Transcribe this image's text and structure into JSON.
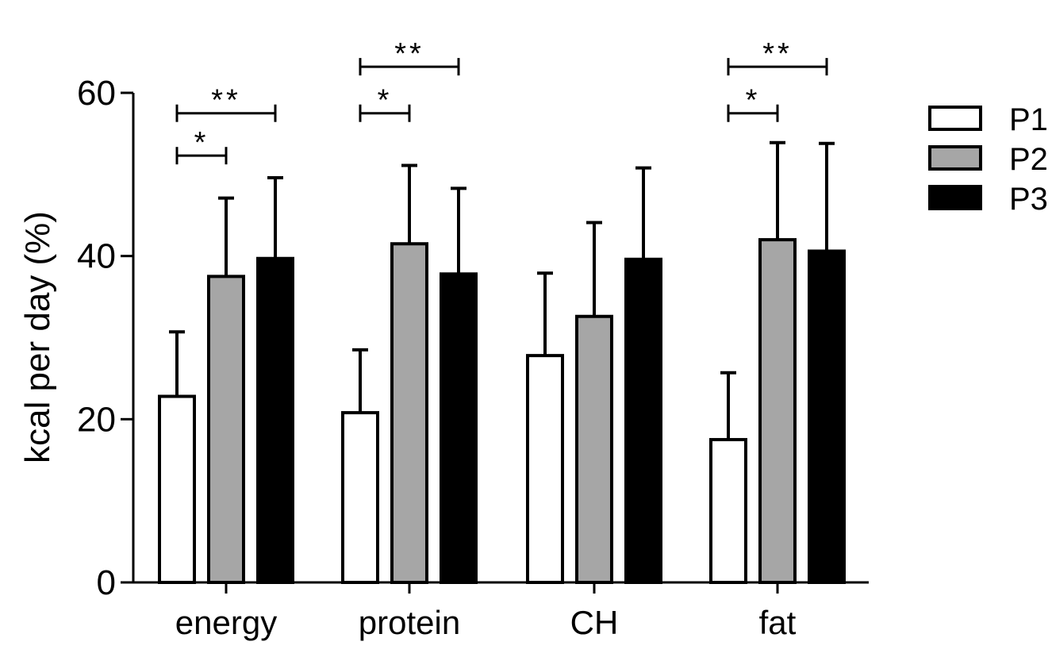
{
  "chart_data": {
    "type": "bar",
    "title": "",
    "xlabel": "",
    "ylabel": "kcal per day (%)",
    "ylim": [
      0,
      60
    ],
    "yticks": [
      0,
      20,
      40,
      60
    ],
    "grid": false,
    "legend_position": "right",
    "categories": [
      "energy",
      "protein",
      "CH",
      "fat"
    ],
    "series": [
      {
        "name": "P1",
        "color": "#ffffff",
        "values": [
          22.8,
          20.8,
          27.8,
          17.5
        ],
        "errors": [
          7.9,
          7.7,
          10.1,
          8.2
        ]
      },
      {
        "name": "P2",
        "color": "#a6a6a6",
        "values": [
          37.5,
          41.5,
          32.6,
          42.0
        ],
        "errors": [
          9.6,
          9.6,
          11.5,
          11.9
        ]
      },
      {
        "name": "P3",
        "color": "#000000",
        "values": [
          39.7,
          37.8,
          39.6,
          40.6
        ],
        "errors": [
          9.9,
          10.5,
          11.2,
          13.2
        ]
      }
    ],
    "significance": [
      {
        "category": "energy",
        "from_series": 0,
        "to_series": 1,
        "label": "*",
        "y": 52.3
      },
      {
        "category": "energy",
        "from_series": 0,
        "to_series": 2,
        "label": "**",
        "y": 57.5
      },
      {
        "category": "protein",
        "from_series": 0,
        "to_series": 1,
        "label": "*",
        "y": 57.5
      },
      {
        "category": "protein",
        "from_series": 0,
        "to_series": 2,
        "label": "**",
        "y": 63.2
      },
      {
        "category": "fat",
        "from_series": 0,
        "to_series": 1,
        "label": "*",
        "y": 57.5
      },
      {
        "category": "fat",
        "from_series": 0,
        "to_series": 2,
        "label": "**",
        "y": 63.2
      }
    ]
  }
}
